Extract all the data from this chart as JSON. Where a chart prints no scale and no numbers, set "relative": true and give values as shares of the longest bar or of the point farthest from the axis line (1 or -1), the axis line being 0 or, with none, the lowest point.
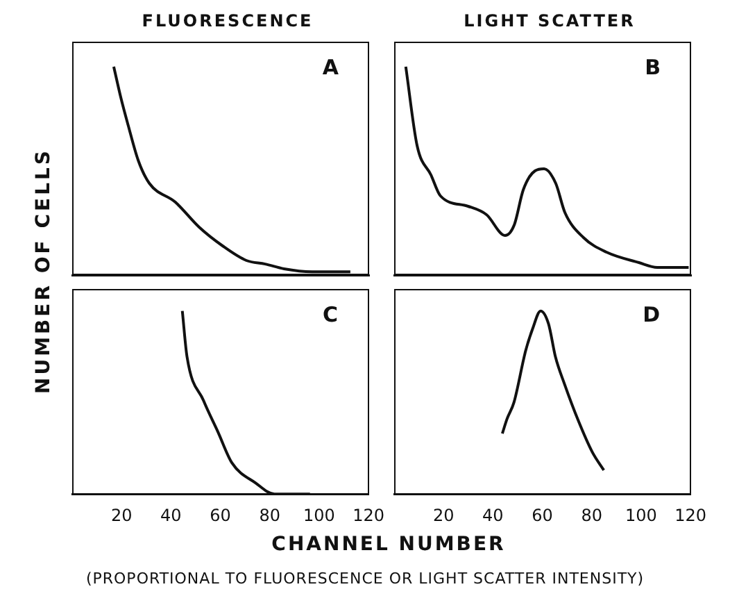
{
  "chart_data": [
    {
      "type": "line",
      "title": "FLUORESCENCE",
      "ylabel": "NUMBER OF CELLS",
      "relative": true,
      "xlim": [
        0,
        120
      ],
      "xticks": [
        20,
        40,
        60,
        80,
        100,
        120
      ],
      "tick_labels": false,
      "marker": "none",
      "annotations": [
        "A"
      ],
      "series": [
        {
          "color": "#111111",
          "x": [
            16.8,
            19.7,
            22.6,
            26.7,
            31.2,
            41.7,
            51.3,
            60.8,
            70.4,
            78,
            85.6,
            97,
            112.4
          ],
          "values": [
            1.0,
            0.85,
            0.72,
            0.55,
            0.44,
            0.35,
            0.23,
            0.14,
            0.07,
            0.053,
            0.03,
            0.016,
            0.016
          ]
        }
      ]
    },
    {
      "type": "line",
      "title": "LIGHT SCATTER",
      "relative": true,
      "xlim": [
        0,
        120
      ],
      "xticks": [
        20,
        40,
        60,
        80,
        100,
        120
      ],
      "tick_labels": false,
      "marker": "none",
      "annotations": [
        "B"
      ],
      "series": [
        {
          "color": "#111111",
          "x": [
            4.7,
            9.3,
            14.9,
            18.7,
            29.9,
            37.3,
            44.8,
            48.5,
            52.2,
            56.9,
            60.6,
            65.3,
            69,
            76.5,
            85.8,
            98.9,
            106.3,
            119
          ],
          "values": [
            1.0,
            0.62,
            0.48,
            0.38,
            0.33,
            0.29,
            0.19,
            0.24,
            0.41,
            0.5,
            0.51,
            0.44,
            0.3,
            0.18,
            0.11,
            0.06,
            0.037,
            0.037
          ]
        }
      ]
    },
    {
      "type": "line",
      "relative": true,
      "xlim": [
        0,
        120
      ],
      "xticks": [
        20,
        40,
        60,
        80,
        100,
        120
      ],
      "tick_labels": "x",
      "marker": "none",
      "annotations": [
        "C"
      ],
      "series": [
        {
          "color": "#111111",
          "x": [
            44.6,
            46.5,
            53.2,
            59,
            64.7,
            74.3,
            81.9,
            91.5,
            96.3
          ],
          "values": [
            1.0,
            0.75,
            0.51,
            0.34,
            0.17,
            0.06,
            0,
            0,
            0
          ]
        }
      ]
    },
    {
      "type": "line",
      "xlabel": "CHANNEL NUMBER",
      "relative": true,
      "xlim": [
        0,
        120
      ],
      "xticks": [
        20,
        40,
        60,
        80,
        100,
        120
      ],
      "tick_labels": "x",
      "marker": "none",
      "annotations": [
        "D",
        "(PROPORTIONAL TO FLUORESCENCE OR LIGHT SCATTER INTENSITY)"
      ],
      "series": [
        {
          "color": "#111111",
          "x": [
            43.8,
            45.7,
            48.5,
            53.2,
            56,
            59.3,
            62.5,
            65.3,
            69,
            74.6,
            80.2,
            84.9
          ],
          "values": [
            0.33,
            0.41,
            0.5,
            0.78,
            0.9,
            1.0,
            0.93,
            0.75,
            0.6,
            0.4,
            0.23,
            0.13
          ]
        }
      ]
    }
  ]
}
